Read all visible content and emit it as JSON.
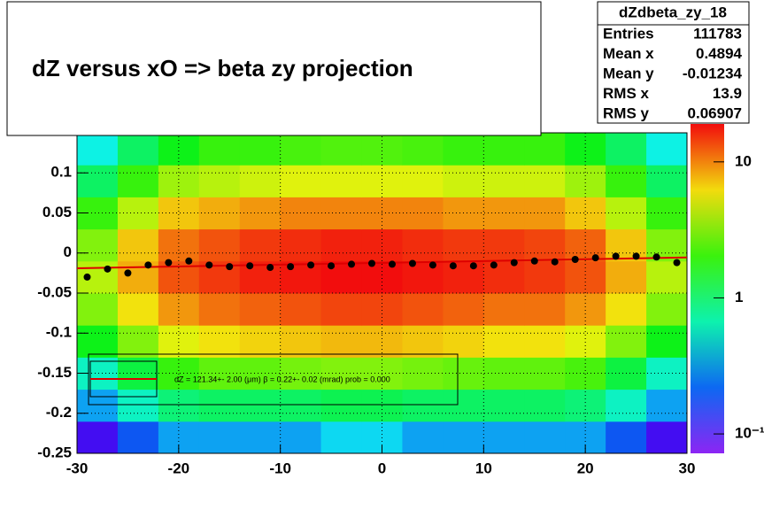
{
  "chart_data": {
    "type": "heatmap",
    "title": "dZ  versus  xO         =>  beta zy projection",
    "xlim": [
      -30,
      30
    ],
    "ylim": [
      -0.25,
      0.15
    ],
    "xticks": [
      -30,
      -20,
      -10,
      0,
      10,
      20,
      30
    ],
    "yticks": [
      -0.25,
      -0.2,
      -0.15,
      -0.1,
      -0.05,
      0,
      0.05,
      0.1
    ],
    "grid": true,
    "zlim": [
      0.072,
      19
    ],
    "zlog": true,
    "zticks": [
      {
        "value": 0.1,
        "label": "10⁻¹"
      },
      1,
      10
    ],
    "xbins": [
      -30,
      -26,
      -22,
      -18,
      -14,
      -10,
      -6,
      -2,
      2,
      6,
      10,
      14,
      18,
      22,
      26,
      30
    ],
    "ybins": [
      -0.25,
      -0.21,
      -0.17,
      -0.13,
      -0.09,
      -0.05,
      -0.01,
      0.03,
      0.07,
      0.11,
      0.15
    ],
    "z": [
      [
        0.1,
        0.2,
        0.3,
        0.3,
        0.3,
        0.3,
        0.4,
        0.4,
        0.3,
        0.3,
        0.3,
        0.3,
        0.3,
        0.2,
        0.1
      ],
      [
        0.3,
        0.6,
        0.9,
        1,
        1,
        1,
        1.1,
        1.1,
        1,
        1,
        1,
        1,
        0.9,
        0.6,
        0.3
      ],
      [
        0.6,
        1.2,
        2,
        2.5,
        2.5,
        2.8,
        3,
        3,
        2.8,
        2.6,
        2.5,
        2.5,
        2.2,
        1.2,
        0.6
      ],
      [
        1.5,
        3,
        5,
        6,
        6.5,
        7,
        7.5,
        7.5,
        7,
        6.5,
        6,
        6,
        5,
        3,
        1.5
      ],
      [
        3,
        6,
        9,
        11,
        12,
        13,
        14,
        14,
        13,
        12,
        11,
        11,
        9,
        6,
        3
      ],
      [
        4,
        8,
        13,
        15,
        17,
        18,
        19,
        19,
        18,
        17,
        16,
        15,
        13,
        8,
        4
      ],
      [
        3,
        7,
        11,
        13,
        15,
        16,
        17,
        17,
        16,
        15,
        15,
        14,
        12,
        7,
        3
      ],
      [
        2,
        4,
        7,
        8,
        9,
        10,
        10,
        10,
        10,
        9,
        9,
        9,
        7,
        4,
        2
      ],
      [
        1,
        2,
        3.5,
        4,
        4.5,
        5,
        5,
        5,
        5,
        4.5,
        4.5,
        4.5,
        3.5,
        2,
        1
      ],
      [
        0.5,
        1,
        1.5,
        2,
        2,
        2.2,
        2.3,
        2.3,
        2.2,
        2,
        2,
        2,
        1.5,
        1,
        0.5
      ]
    ],
    "profile": {
      "x": [
        -29,
        -27,
        -25,
        -23,
        -21,
        -19,
        -17,
        -15,
        -13,
        -11,
        -9,
        -7,
        -5,
        -3,
        -1,
        1,
        3,
        5,
        7,
        9,
        11,
        13,
        15,
        17,
        19,
        21,
        23,
        25,
        27,
        29
      ],
      "y": [
        -0.03,
        -0.02,
        -0.025,
        -0.015,
        -0.012,
        -0.01,
        -0.015,
        -0.017,
        -0.016,
        -0.018,
        -0.017,
        -0.015,
        -0.016,
        -0.014,
        -0.013,
        -0.014,
        -0.013,
        -0.015,
        -0.016,
        -0.016,
        -0.015,
        -0.012,
        -0.01,
        -0.011,
        -0.008,
        -0.006,
        -0.004,
        -0.004,
        -0.005,
        -0.012
      ],
      "color": "#000000"
    },
    "fit": {
      "x": [
        -30,
        30
      ],
      "y": [
        -0.019,
        -0.0055
      ],
      "color": "#dd0000"
    },
    "legend": "dZ =  121.34+- 2.00 (μm) β =    0.22+- 0.02 (mrad) prob = 0.000",
    "stats": {
      "title": "dZdbeta_zy_18",
      "rows": [
        [
          "Entries",
          "111783"
        ],
        [
          "Mean x",
          "0.4894"
        ],
        [
          "Mean y",
          "-0.01234"
        ],
        [
          "RMS x",
          "13.9"
        ],
        [
          "RMS y",
          "0.06907"
        ]
      ]
    }
  }
}
